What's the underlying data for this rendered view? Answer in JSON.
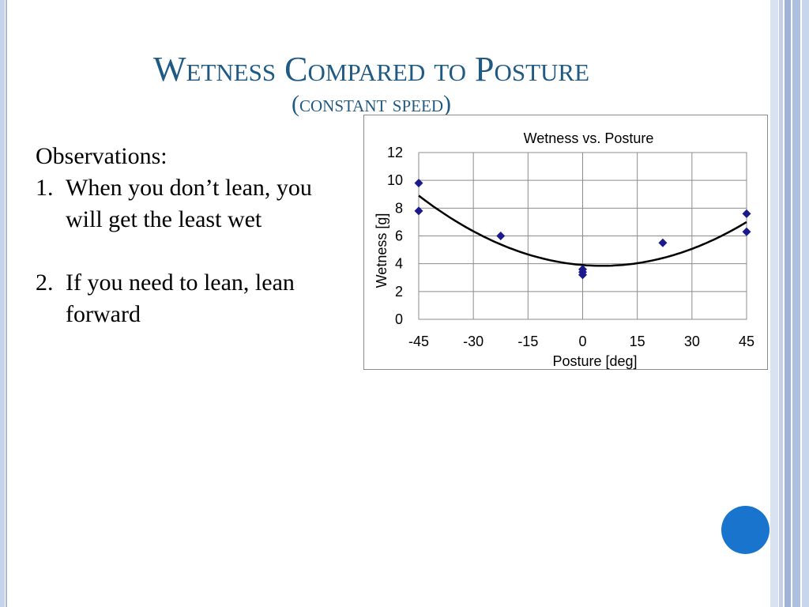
{
  "slide": {
    "title": "Wetness Compared to Posture",
    "subtitle": "(constant speed)",
    "observations_heading": "Observations:",
    "observations": [
      {
        "num": "1.",
        "text": "When you don’t lean, you will get the least wet"
      },
      {
        "num": "2.",
        "text": "If you need to lean, lean forward"
      }
    ]
  },
  "colors": {
    "title": "#1f5a84",
    "marker": "#1a1a8c",
    "accent_circle": "#1874cd"
  },
  "chart_data": {
    "type": "scatter",
    "title": "Wetness vs. Posture",
    "xlabel": "Posture [deg]",
    "ylabel": "Wetness [g]",
    "xlim": [
      -45,
      45
    ],
    "ylim": [
      0,
      12
    ],
    "xticks": [
      -45,
      -30,
      -15,
      0,
      15,
      30,
      45
    ],
    "yticks": [
      0,
      2,
      4,
      6,
      8,
      10,
      12
    ],
    "grid": true,
    "series": [
      {
        "marker": "diamond",
        "points": [
          {
            "x": -45,
            "y": 9.8
          },
          {
            "x": -45,
            "y": 7.8
          },
          {
            "x": -22.5,
            "y": 6.0
          },
          {
            "x": 0,
            "y": 3.6
          },
          {
            "x": 0,
            "y": 3.4
          },
          {
            "x": 0,
            "y": 3.2
          },
          {
            "x": 22,
            "y": 5.5
          },
          {
            "x": 45,
            "y": 7.6
          },
          {
            "x": 45,
            "y": 6.3
          }
        ]
      }
    ],
    "trendline": {
      "type": "polynomial-2",
      "points": [
        {
          "x": -45,
          "y": 8.9
        },
        {
          "x": 6,
          "y": 3.85
        },
        {
          "x": 45,
          "y": 7.0
        }
      ]
    }
  }
}
